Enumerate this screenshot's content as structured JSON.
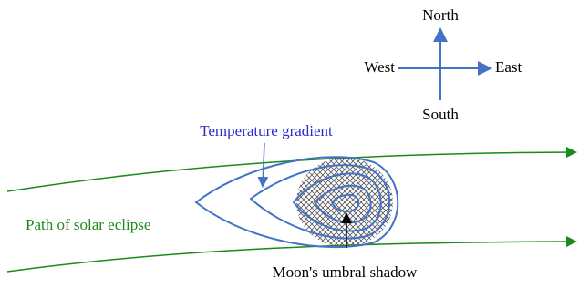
{
  "compass": {
    "north": "North",
    "south": "South",
    "east": "East",
    "west": "West"
  },
  "labels": {
    "temperature_gradient": "Temperature gradient",
    "path": "Path of solar eclipse",
    "shadow": "Moon's umbral shadow"
  }
}
